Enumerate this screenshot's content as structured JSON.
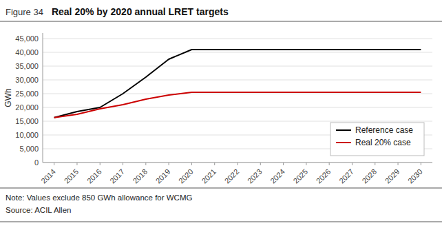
{
  "chart_data": {
    "type": "line",
    "title": "Real 20% by 2020 annual LRET targets",
    "annotations": [
      "Figure 34",
      "Note: Values exclude 850 GWh allowance for WCMG",
      "Source: ACIL Allen"
    ],
    "ylabel": "GWh",
    "x": [
      2014,
      2015,
      2016,
      2017,
      2018,
      2019,
      2020,
      2021,
      2022,
      2023,
      2024,
      2025,
      2026,
      2027,
      2028,
      2029,
      2030
    ],
    "xlim": [
      2013.5,
      2030.5
    ],
    "xticks": [
      2014,
      2015,
      2016,
      2017,
      2018,
      2019,
      2020,
      2021,
      2022,
      2023,
      2024,
      2025,
      2026,
      2027,
      2028,
      2029,
      2030
    ],
    "ylim": [
      0,
      47000
    ],
    "yticks": [
      0,
      {
        "value": 5000,
        "label": "5,000"
      },
      {
        "value": 10000,
        "label": "10,000"
      },
      {
        "value": 15000,
        "label": "15,000"
      },
      {
        "value": 20000,
        "label": "20,000"
      },
      {
        "value": 25000,
        "label": "25,000"
      },
      {
        "value": 30000,
        "label": "30,000"
      },
      {
        "value": 35000,
        "label": "35,000"
      },
      {
        "value": 40000,
        "label": "40,000"
      },
      {
        "value": 45000,
        "label": "45,000"
      }
    ],
    "grid": true,
    "legend": "lower right",
    "series": [
      {
        "name": "Reference case",
        "color": "#000000",
        "values": [
          16300,
          18500,
          20000,
          25000,
          31000,
          37500,
          41000,
          41000,
          41000,
          41000,
          41000,
          41000,
          41000,
          41000,
          41000,
          41000,
          41000
        ]
      },
      {
        "name": "Real 20% case",
        "color": "#cc0000",
        "values": [
          16300,
          17500,
          19500,
          21000,
          23000,
          24500,
          25500,
          25500,
          25500,
          25500,
          25500,
          25500,
          25500,
          25500,
          25500,
          25500,
          25500
        ]
      }
    ]
  }
}
